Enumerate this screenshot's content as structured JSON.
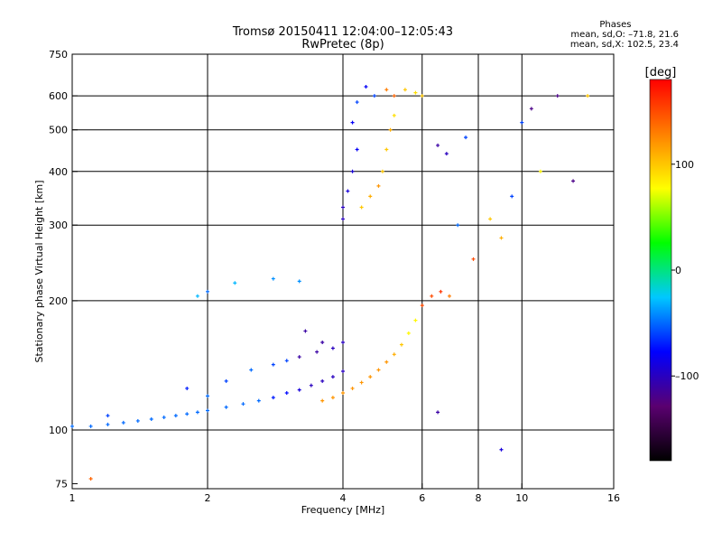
{
  "header": {
    "title_line1": "Tromsø 20150411 12:04:00–12:05:43",
    "title_line2": "RwPretec (8p)"
  },
  "stats": {
    "label": "Phases",
    "line_o": "mean, sd,O: –71.8, 21.6",
    "line_x": "mean, sd,X: 102.5, 23.4"
  },
  "colorbar": {
    "unit_label": "[deg]",
    "tick_labels": [
      "100",
      "0",
      "–100"
    ],
    "tick_values": [
      100,
      0,
      -100
    ],
    "range": [
      -180,
      180
    ],
    "colormap": [
      "#000000",
      "#5a0070",
      "#0000ff",
      "#00c8ff",
      "#00ff00",
      "#ffff00",
      "#ff8000",
      "#ff0000"
    ]
  },
  "chart_data": {
    "type": "scatter",
    "xlabel": "Frequency [MHz]",
    "ylabel": "Stationary phase Virtual Height [km]",
    "xscale": "log",
    "yscale": "log",
    "xlim": [
      1,
      16
    ],
    "ylim": [
      73,
      750
    ],
    "xticks": [
      1,
      2,
      4,
      6,
      8,
      10,
      16
    ],
    "xtick_labels": [
      "1",
      "2",
      "4",
      "6",
      "8",
      "10",
      "16"
    ],
    "xgrid": [
      2,
      4,
      6,
      8,
      10
    ],
    "yticks": [
      75,
      100,
      200,
      300,
      400,
      500,
      600,
      750
    ],
    "ytick_labels": [
      "75",
      "100",
      "200",
      "300",
      "400",
      "500",
      "600",
      "750"
    ],
    "ygrid": [
      100,
      200,
      300,
      400,
      500,
      600
    ],
    "grid": true,
    "series": [
      {
        "points": [
          [
            1.0,
            102,
            -50
          ],
          [
            1.1,
            102,
            -50
          ],
          [
            1.2,
            103,
            -50
          ],
          [
            1.3,
            104,
            -50
          ],
          [
            1.4,
            105,
            -50
          ],
          [
            1.5,
            106,
            -50
          ],
          [
            1.6,
            107,
            -50
          ],
          [
            1.7,
            108,
            -50
          ],
          [
            1.8,
            109,
            -50
          ],
          [
            1.9,
            110,
            -50
          ],
          [
            2.0,
            111,
            -50
          ],
          [
            2.2,
            113,
            -50
          ],
          [
            2.4,
            115,
            -50
          ],
          [
            2.6,
            117,
            -50
          ],
          [
            2.8,
            119,
            -70
          ],
          [
            3.0,
            122,
            -75
          ],
          [
            3.2,
            124,
            -90
          ],
          [
            3.4,
            127,
            -100
          ],
          [
            3.6,
            130,
            -100
          ],
          [
            3.8,
            133,
            -100
          ],
          [
            4.0,
            137,
            -100
          ]
        ]
      },
      {
        "points": [
          [
            3.6,
            117,
            120
          ],
          [
            3.8,
            119,
            120
          ],
          [
            4.0,
            122,
            120
          ],
          [
            4.2,
            125,
            120
          ],
          [
            4.4,
            129,
            120
          ],
          [
            4.6,
            133,
            120
          ],
          [
            4.8,
            138,
            120
          ],
          [
            5.0,
            144,
            120
          ],
          [
            5.2,
            150,
            110
          ],
          [
            5.4,
            158,
            100
          ],
          [
            5.6,
            168,
            80
          ],
          [
            5.8,
            180,
            80
          ],
          [
            6.0,
            195,
            150
          ],
          [
            6.3,
            205,
            150
          ],
          [
            6.6,
            210,
            160
          ],
          [
            6.9,
            205,
            130
          ]
        ]
      },
      {
        "points": [
          [
            1.8,
            125,
            -70
          ],
          [
            2.0,
            120,
            -50
          ],
          [
            2.2,
            130,
            -60
          ],
          [
            2.5,
            138,
            -50
          ],
          [
            2.8,
            142,
            -60
          ],
          [
            3.0,
            145,
            -60
          ],
          [
            3.2,
            148,
            -110
          ],
          [
            3.5,
            152,
            -110
          ],
          [
            3.8,
            155,
            -100
          ],
          [
            4.0,
            160,
            -100
          ]
        ]
      },
      {
        "points": [
          [
            4.0,
            310,
            -100
          ],
          [
            4.0,
            330,
            -100
          ],
          [
            4.1,
            360,
            -90
          ],
          [
            4.2,
            400,
            -90
          ],
          [
            4.3,
            450,
            -80
          ],
          [
            4.2,
            520,
            -80
          ],
          [
            4.3,
            580,
            -60
          ],
          [
            4.5,
            630,
            -80
          ],
          [
            4.7,
            600,
            -60
          ],
          [
            5.0,
            620,
            130
          ],
          [
            5.2,
            600,
            140
          ],
          [
            5.5,
            620,
            100
          ],
          [
            5.8,
            610,
            90
          ],
          [
            6.0,
            600,
            100
          ]
        ]
      },
      {
        "points": [
          [
            4.4,
            330,
            100
          ],
          [
            4.6,
            350,
            110
          ],
          [
            4.8,
            370,
            120
          ],
          [
            4.9,
            400,
            100
          ],
          [
            5.0,
            450,
            100
          ],
          [
            5.1,
            500,
            110
          ],
          [
            5.2,
            540,
            90
          ]
        ]
      },
      {
        "points": [
          [
            2.0,
            210,
            -50
          ],
          [
            1.9,
            205,
            -30
          ],
          [
            2.3,
            220,
            -30
          ],
          [
            2.8,
            225,
            -40
          ],
          [
            3.2,
            222,
            -40
          ],
          [
            3.3,
            170,
            -110
          ],
          [
            3.6,
            160,
            -110
          ],
          [
            6.5,
            460,
            -110
          ],
          [
            6.8,
            440,
            -100
          ],
          [
            7.5,
            480,
            -60
          ],
          [
            7.2,
            300,
            -50
          ],
          [
            7.8,
            250,
            150
          ],
          [
            8.5,
            310,
            100
          ],
          [
            9.0,
            280,
            110
          ],
          [
            9.5,
            350,
            -60
          ],
          [
            10.0,
            520,
            -60
          ],
          [
            10.5,
            560,
            -120
          ],
          [
            11.0,
            400,
            80
          ],
          [
            12.0,
            600,
            -120
          ],
          [
            13.0,
            380,
            -120
          ],
          [
            14.0,
            600,
            100
          ],
          [
            9.0,
            90,
            -90
          ],
          [
            6.5,
            110,
            -110
          ],
          [
            1.1,
            77,
            140
          ],
          [
            1.2,
            108,
            -60
          ]
        ]
      }
    ]
  }
}
